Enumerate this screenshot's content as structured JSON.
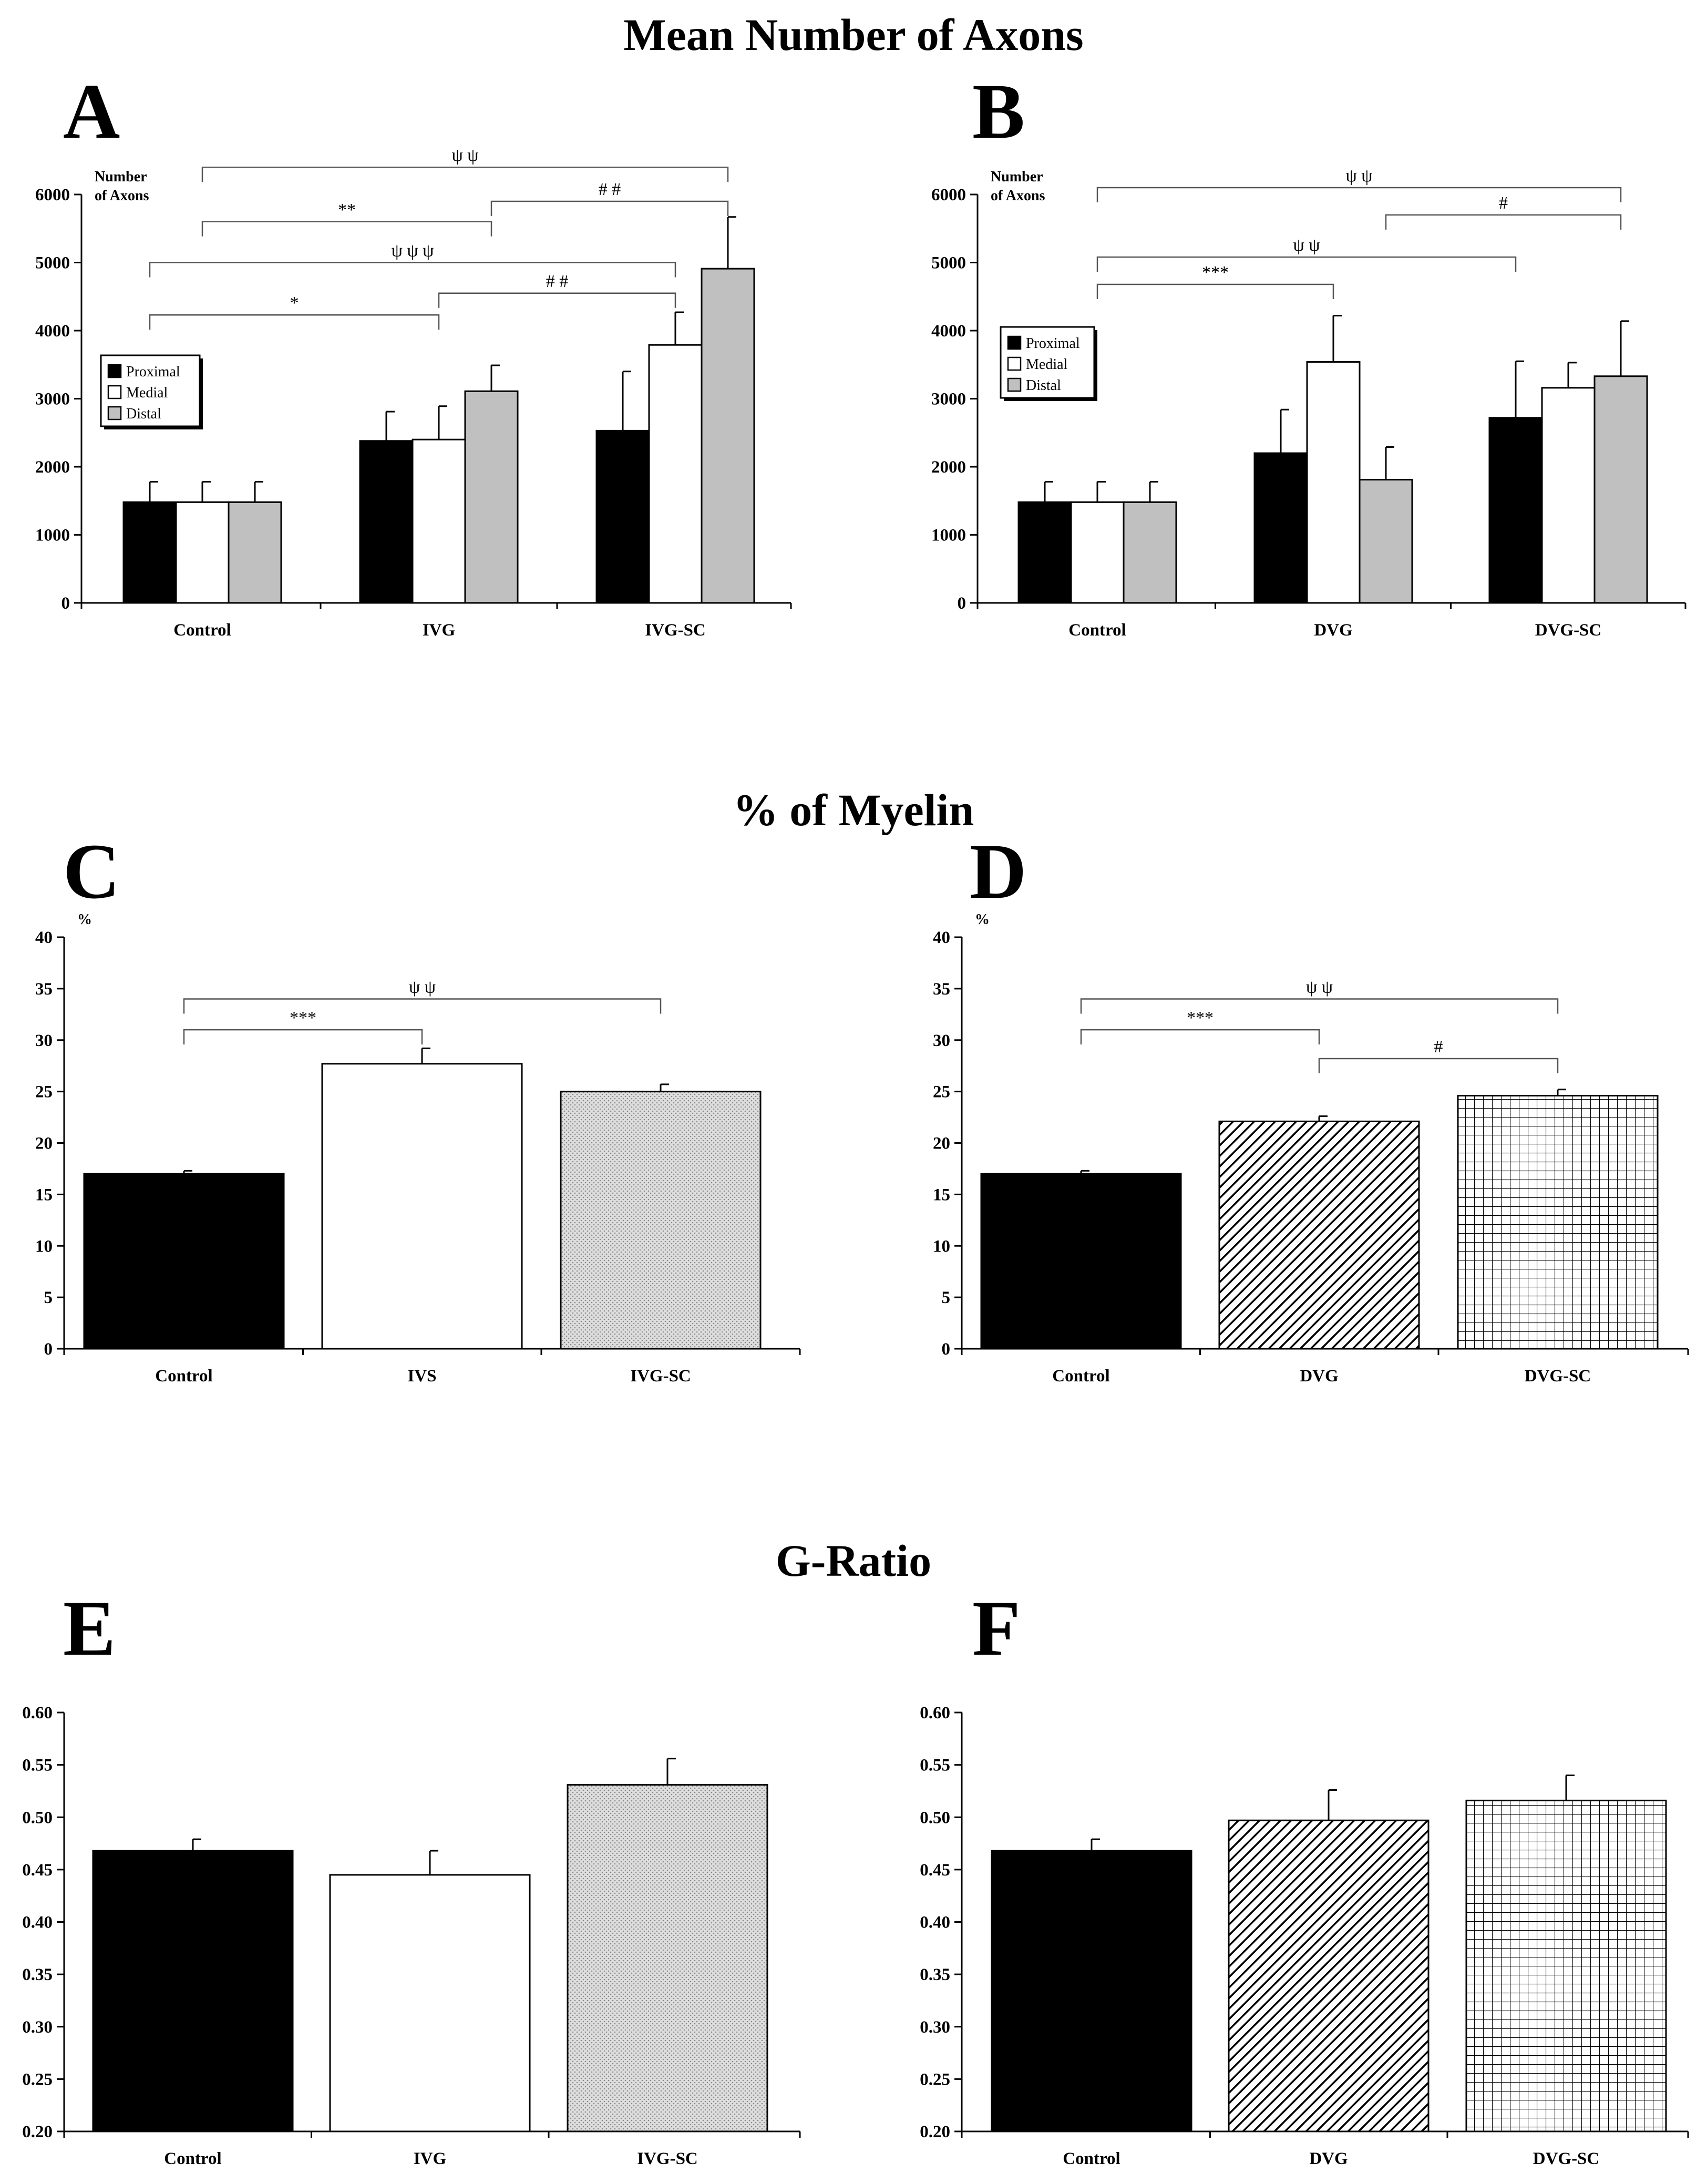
{
  "sections": [
    {
      "title": "Mean Number of Axons"
    },
    {
      "title": "% of Myelin"
    },
    {
      "title": "G-Ratio"
    }
  ],
  "legend": {
    "items": [
      "Proximal",
      "Medial",
      "Distal"
    ]
  },
  "colors": {
    "black": "#000000",
    "white": "#ffffff",
    "gray": "#c0c0c0",
    "speckle": "#d6d6d6"
  },
  "chart_data": [
    {
      "panel": "A",
      "type": "bar",
      "ylabel": [
        "Number",
        "of Axons"
      ],
      "ylim": [
        0,
        6000
      ],
      "yticks": [
        "0",
        "1000",
        "2000",
        "3000",
        "4000",
        "5000",
        "6000"
      ],
      "categories": [
        "Control",
        "IVG",
        "IVG-SC"
      ],
      "series": [
        {
          "name": "Proximal",
          "values": [
            1480,
            2380,
            2530
          ],
          "errors": [
            300,
            430,
            870
          ]
        },
        {
          "name": "Medial",
          "values": [
            1480,
            2400,
            3790
          ],
          "errors": [
            300,
            490,
            480
          ]
        },
        {
          "name": "Distal",
          "values": [
            1480,
            3110,
            4910
          ],
          "errors": [
            300,
            380,
            760
          ]
        }
      ],
      "significance": [
        {
          "label": "ψ ψ",
          "from": [
            0,
            1
          ],
          "to": [
            2,
            2
          ],
          "level": 6400
        },
        {
          "label": "# #",
          "from": [
            1,
            2
          ],
          "to": [
            2,
            2
          ],
          "level": 5900
        },
        {
          "label": "**",
          "from": [
            0,
            1
          ],
          "to": [
            1,
            2
          ],
          "level": 5600
        },
        {
          "label": "ψ ψ ψ",
          "from": [
            0,
            0
          ],
          "to": [
            2,
            1
          ],
          "level": 5000
        },
        {
          "label": "# #",
          "from": [
            1,
            1
          ],
          "to": [
            2,
            1
          ],
          "level": 4550
        },
        {
          "label": "*",
          "from": [
            0,
            0
          ],
          "to": [
            1,
            1
          ],
          "level": 4230
        }
      ]
    },
    {
      "panel": "B",
      "type": "bar",
      "ylabel": [
        "Number",
        "of Axons"
      ],
      "ylim": [
        0,
        6000
      ],
      "yticks": [
        "0",
        "1000",
        "2000",
        "3000",
        "4000",
        "5000",
        "6000"
      ],
      "categories": [
        "Control",
        "DVG",
        "DVG-SC"
      ],
      "series": [
        {
          "name": "Proximal",
          "values": [
            1480,
            2200,
            2720
          ],
          "errors": [
            300,
            640,
            830
          ]
        },
        {
          "name": "Medial",
          "values": [
            1480,
            3540,
            3160
          ],
          "errors": [
            300,
            680,
            370
          ]
        },
        {
          "name": "Distal",
          "values": [
            1480,
            1810,
            3330
          ],
          "errors": [
            300,
            480,
            810
          ]
        }
      ],
      "significance": [
        {
          "label": "ψ ψ",
          "from": [
            0,
            1
          ],
          "to": [
            2,
            2
          ],
          "level": 6100
        },
        {
          "label": "#",
          "from": [
            1,
            2
          ],
          "to": [
            2,
            2
          ],
          "level": 5700
        },
        {
          "label": "ψ ψ",
          "from": [
            0,
            1
          ],
          "to": [
            2,
            0
          ],
          "level": 5080
        },
        {
          "label": "***",
          "from": [
            0,
            1
          ],
          "to": [
            1,
            1
          ],
          "level": 4680
        }
      ]
    },
    {
      "panel": "C",
      "type": "bar",
      "ylabel": [
        "%"
      ],
      "ylim": [
        0,
        40
      ],
      "yticks": [
        "0",
        "5",
        "10",
        "15",
        "20",
        "25",
        "30",
        "35",
        "40"
      ],
      "categories": [
        "Control",
        "IVS",
        "IVG-SC"
      ],
      "values": [
        17.0,
        27.7,
        25.0
      ],
      "errors": [
        0.3,
        1.5,
        0.7
      ],
      "significance": [
        {
          "label": "ψ ψ",
          "from": 0,
          "to": 2,
          "level": 34.0
        },
        {
          "label": "***",
          "from": 0,
          "to": 1,
          "level": 31.0
        }
      ]
    },
    {
      "panel": "D",
      "type": "bar",
      "ylabel": [
        "%"
      ],
      "ylim": [
        0,
        40
      ],
      "yticks": [
        "0",
        "5",
        "10",
        "15",
        "20",
        "25",
        "30",
        "35",
        "40"
      ],
      "categories": [
        "Control",
        "DVG",
        "DVG-SC"
      ],
      "values": [
        17.0,
        22.1,
        24.6
      ],
      "errors": [
        0.3,
        0.5,
        0.6
      ],
      "significance": [
        {
          "label": "ψ ψ",
          "from": 0,
          "to": 2,
          "level": 34.0
        },
        {
          "label": "***",
          "from": 0,
          "to": 1,
          "level": 31.0
        },
        {
          "label": "#",
          "from": 1,
          "to": 2,
          "level": 28.2
        }
      ]
    },
    {
      "panel": "E",
      "type": "bar",
      "ylabel": [],
      "ylim": [
        0.2,
        0.6
      ],
      "yticks": [
        "0.20",
        "0.25",
        "0.30",
        "0.35",
        "0.40",
        "0.45",
        "0.50",
        "0.55",
        "0.60"
      ],
      "categories": [
        "Control",
        "IVG",
        "IVG-SC"
      ],
      "values": [
        0.468,
        0.445,
        0.531
      ],
      "errors": [
        0.011,
        0.023,
        0.025
      ],
      "significance": []
    },
    {
      "panel": "F",
      "type": "bar",
      "ylabel": [],
      "ylim": [
        0.2,
        0.6
      ],
      "yticks": [
        "0.20",
        "0.25",
        "0.30",
        "0.35",
        "0.40",
        "0.45",
        "0.50",
        "0.55",
        "0.60"
      ],
      "categories": [
        "Control",
        "DVG",
        "DVG-SC"
      ],
      "values": [
        0.468,
        0.497,
        0.516
      ],
      "errors": [
        0.011,
        0.029,
        0.024
      ],
      "significance": []
    }
  ]
}
